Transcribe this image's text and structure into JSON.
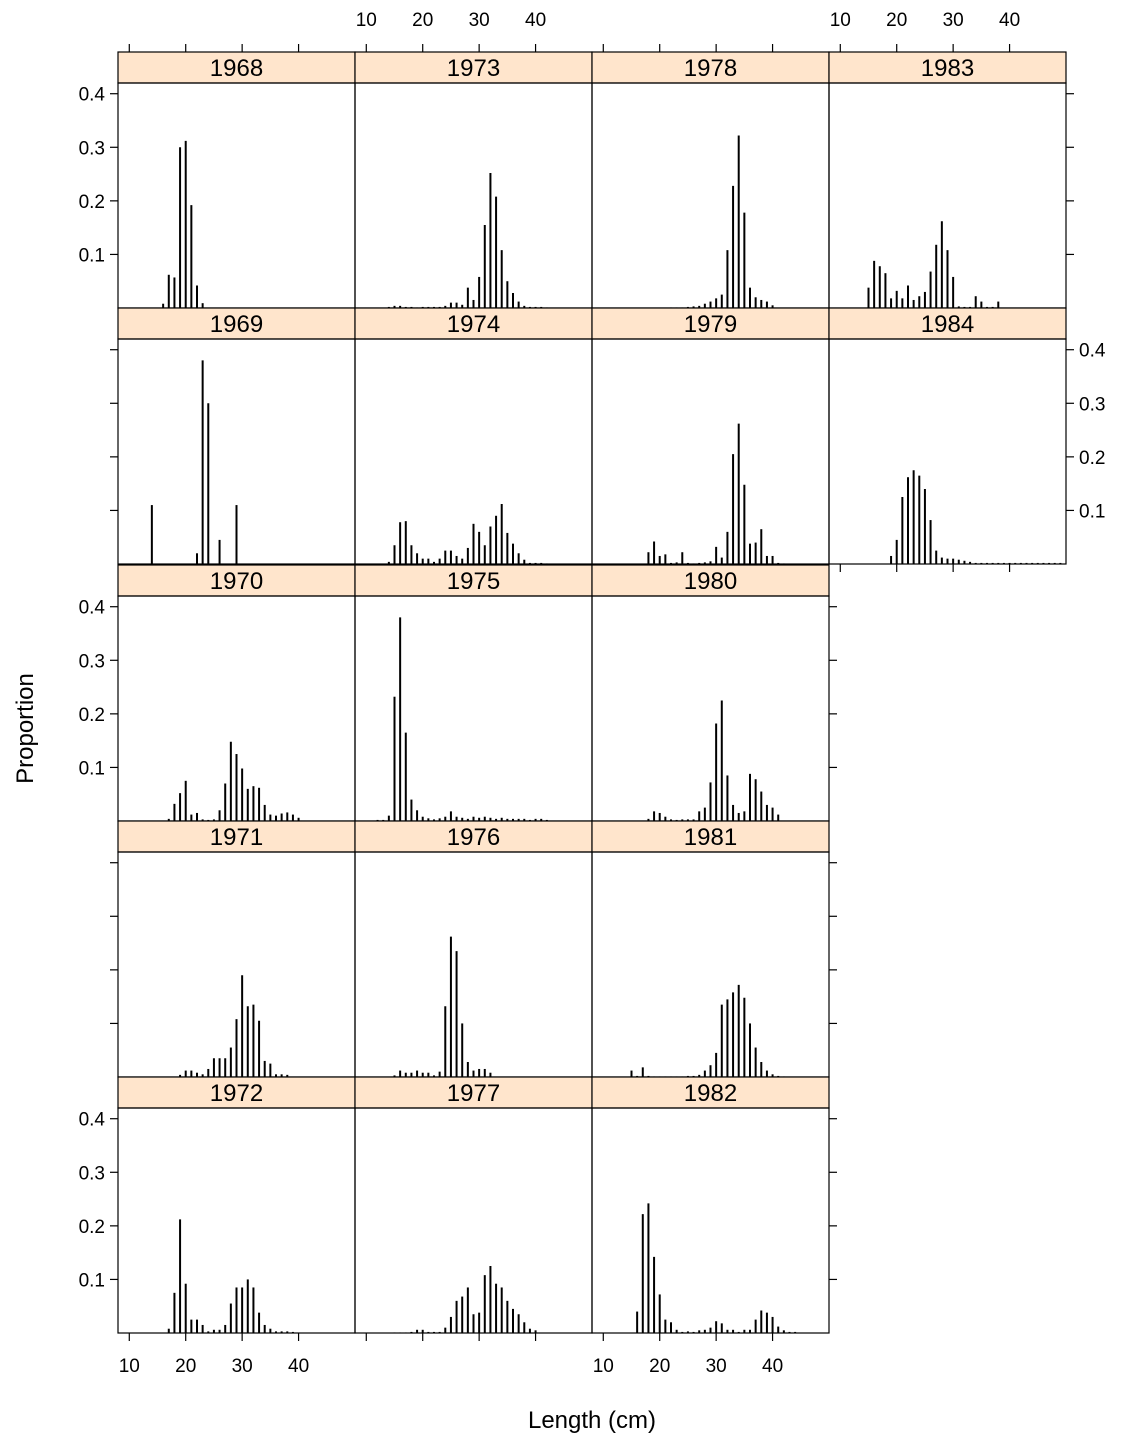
{
  "chart_data": {
    "type": "bar",
    "xlabel": "Length (cm)",
    "ylabel": "Proportion",
    "xlim": [
      8,
      50
    ],
    "ylim": [
      0,
      0.42
    ],
    "xticks": [
      10,
      20,
      30,
      40
    ],
    "yticks": [
      0.1,
      0.2,
      0.3,
      0.4
    ],
    "x_tick_labels": [
      "10",
      "20",
      "30",
      "40"
    ],
    "y_tick_labels": [
      "0.1",
      "0.2",
      "0.3",
      "0.4"
    ],
    "grid": false,
    "layout": {
      "columns": 4,
      "rows": 5,
      "order": "column-major"
    },
    "strip_color": "#ffe5cc",
    "bar_color": "#000000",
    "panels": [
      {
        "label": "1968",
        "lengths": [
          16,
          17,
          18,
          19,
          20,
          21,
          22,
          23
        ],
        "values": [
          0.008,
          0.062,
          0.057,
          0.3,
          0.312,
          0.192,
          0.042,
          0.009
        ]
      },
      {
        "label": "1969",
        "lengths": [
          14,
          22,
          23,
          24,
          26,
          29
        ],
        "values": [
          0.11,
          0.02,
          0.38,
          0.3,
          0.045,
          0.11
        ]
      },
      {
        "label": "1970",
        "lengths": [
          17,
          18,
          19,
          20,
          21,
          22,
          23,
          24,
          25,
          26,
          27,
          28,
          29,
          30,
          31,
          32,
          33,
          34,
          35,
          36,
          37,
          38,
          39,
          40
        ],
        "values": [
          0.004,
          0.032,
          0.052,
          0.075,
          0.012,
          0.015,
          0.003,
          0.002,
          0.003,
          0.02,
          0.07,
          0.148,
          0.125,
          0.098,
          0.06,
          0.065,
          0.062,
          0.03,
          0.012,
          0.01,
          0.014,
          0.016,
          0.012,
          0.006
        ]
      },
      {
        "label": "1971",
        "lengths": [
          19,
          20,
          21,
          22,
          23,
          24,
          25,
          26,
          27,
          28,
          29,
          30,
          31,
          32,
          33,
          34,
          35,
          36,
          37,
          38
        ],
        "values": [
          0.004,
          0.012,
          0.012,
          0.008,
          0.005,
          0.015,
          0.035,
          0.035,
          0.035,
          0.055,
          0.108,
          0.19,
          0.132,
          0.135,
          0.105,
          0.03,
          0.025,
          0.005,
          0.005,
          0.004
        ]
      },
      {
        "label": "1972",
        "lengths": [
          17,
          18,
          19,
          20,
          21,
          22,
          23,
          24,
          25,
          26,
          27,
          28,
          29,
          30,
          31,
          32,
          33,
          34,
          35,
          36,
          37,
          38,
          39
        ],
        "values": [
          0.008,
          0.075,
          0.212,
          0.092,
          0.025,
          0.025,
          0.015,
          0.003,
          0.006,
          0.006,
          0.015,
          0.055,
          0.085,
          0.085,
          0.1,
          0.085,
          0.038,
          0.015,
          0.008,
          0.003,
          0.003,
          0.003,
          0.002
        ]
      },
      {
        "label": "1973",
        "lengths": [
          14,
          15,
          16,
          17,
          18,
          19,
          20,
          21,
          22,
          23,
          24,
          25,
          26,
          27,
          28,
          29,
          30,
          31,
          32,
          33,
          34,
          35,
          36,
          37,
          38,
          39,
          40,
          41,
          42
        ],
        "values": [
          0.002,
          0.004,
          0.004,
          0.002,
          0.002,
          0.001,
          0.002,
          0.002,
          0.002,
          0.002,
          0.004,
          0.01,
          0.01,
          0.006,
          0.038,
          0.015,
          0.058,
          0.155,
          0.252,
          0.208,
          0.108,
          0.05,
          0.028,
          0.012,
          0.004,
          0.002,
          0.002,
          0.002,
          0.001
        ]
      },
      {
        "label": "1974",
        "lengths": [
          14,
          15,
          16,
          17,
          18,
          19,
          20,
          21,
          22,
          23,
          24,
          25,
          26,
          27,
          28,
          29,
          30,
          31,
          32,
          33,
          34,
          35,
          36,
          37,
          38,
          39,
          40,
          41,
          42
        ],
        "values": [
          0.004,
          0.035,
          0.078,
          0.08,
          0.035,
          0.02,
          0.01,
          0.01,
          0.004,
          0.01,
          0.025,
          0.025,
          0.015,
          0.01,
          0.03,
          0.075,
          0.06,
          0.035,
          0.07,
          0.09,
          0.112,
          0.058,
          0.038,
          0.02,
          0.008,
          0.002,
          0.002,
          0.002,
          0.001
        ]
      },
      {
        "label": "1975",
        "lengths": [
          12,
          13,
          14,
          15,
          16,
          17,
          18,
          19,
          20,
          21,
          22,
          23,
          24,
          25,
          26,
          27,
          28,
          29,
          30,
          31,
          32,
          33,
          34,
          35,
          36,
          37,
          38,
          39,
          40,
          41,
          42
        ],
        "values": [
          0.002,
          0.002,
          0.01,
          0.232,
          0.38,
          0.165,
          0.04,
          0.02,
          0.008,
          0.005,
          0.003,
          0.005,
          0.008,
          0.018,
          0.008,
          0.006,
          0.004,
          0.008,
          0.006,
          0.008,
          0.006,
          0.004,
          0.006,
          0.004,
          0.004,
          0.004,
          0.004,
          0.002,
          0.004,
          0.004,
          0.002
        ]
      },
      {
        "label": "1976",
        "lengths": [
          15,
          16,
          17,
          18,
          19,
          20,
          21,
          22,
          23,
          24,
          25,
          26,
          27,
          28,
          29,
          30,
          31,
          32
        ],
        "values": [
          0.003,
          0.012,
          0.008,
          0.008,
          0.012,
          0.008,
          0.008,
          0.003,
          0.01,
          0.132,
          0.262,
          0.235,
          0.1,
          0.028,
          0.012,
          0.015,
          0.015,
          0.008
        ]
      },
      {
        "label": "1977",
        "lengths": [
          15,
          16,
          17,
          18,
          19,
          20,
          21,
          22,
          23,
          24,
          25,
          26,
          27,
          28,
          29,
          30,
          31,
          32,
          33,
          34,
          35,
          36,
          37,
          38,
          39,
          40
        ],
        "values": [
          0.001,
          0.001,
          0.001,
          0.002,
          0.006,
          0.006,
          0.002,
          0.002,
          0.002,
          0.01,
          0.03,
          0.06,
          0.068,
          0.085,
          0.035,
          0.038,
          0.108,
          0.125,
          0.092,
          0.085,
          0.06,
          0.045,
          0.035,
          0.02,
          0.008,
          0.005
        ]
      },
      {
        "label": "1978",
        "lengths": [
          22,
          23,
          24,
          25,
          26,
          27,
          28,
          29,
          30,
          31,
          32,
          33,
          34,
          35,
          36,
          37,
          38,
          39,
          40
        ],
        "values": [
          0.001,
          0.001,
          0.001,
          0.002,
          0.003,
          0.004,
          0.008,
          0.012,
          0.018,
          0.025,
          0.108,
          0.228,
          0.322,
          0.178,
          0.038,
          0.02,
          0.015,
          0.012,
          0.005
        ]
      },
      {
        "label": "1979",
        "lengths": [
          18,
          19,
          20,
          21,
          22,
          23,
          24,
          25,
          26,
          27,
          28,
          29,
          30,
          31,
          32,
          33,
          34,
          35,
          36,
          37,
          38,
          39,
          40,
          41,
          42
        ],
        "values": [
          0.022,
          0.042,
          0.015,
          0.018,
          0.002,
          0.003,
          0.022,
          0.002,
          0.001,
          0.002,
          0.003,
          0.005,
          0.032,
          0.012,
          0.06,
          0.205,
          0.262,
          0.148,
          0.038,
          0.04,
          0.065,
          0.015,
          0.015,
          0.002,
          0.001
        ]
      },
      {
        "label": "1980",
        "lengths": [
          18,
          19,
          20,
          21,
          22,
          23,
          24,
          25,
          26,
          27,
          28,
          29,
          30,
          31,
          32,
          33,
          34,
          35,
          36,
          37,
          38,
          39,
          40,
          41
        ],
        "values": [
          0.004,
          0.018,
          0.015,
          0.008,
          0.003,
          0.002,
          0.003,
          0.003,
          0.003,
          0.018,
          0.025,
          0.072,
          0.182,
          0.225,
          0.085,
          0.03,
          0.015,
          0.018,
          0.088,
          0.078,
          0.055,
          0.03,
          0.025,
          0.012
        ]
      },
      {
        "label": "1981",
        "lengths": [
          15,
          16,
          17,
          18,
          19,
          20,
          21,
          22,
          23,
          24,
          25,
          26,
          27,
          28,
          29,
          30,
          31,
          32,
          33,
          34,
          35,
          36,
          37,
          38,
          39,
          40,
          41,
          42
        ],
        "values": [
          0.012,
          0.002,
          0.018,
          0.002,
          0.001,
          0.001,
          0.001,
          0.001,
          0.001,
          0.001,
          0.002,
          0.002,
          0.004,
          0.012,
          0.022,
          0.045,
          0.135,
          0.145,
          0.158,
          0.172,
          0.148,
          0.1,
          0.055,
          0.028,
          0.012,
          0.005,
          0.002,
          0.001
        ]
      },
      {
        "label": "1982",
        "lengths": [
          16,
          17,
          18,
          19,
          20,
          21,
          22,
          23,
          24,
          25,
          26,
          27,
          28,
          29,
          30,
          31,
          32,
          33,
          34,
          35,
          36,
          37,
          38,
          39,
          40,
          41,
          42,
          43,
          44
        ],
        "values": [
          0.04,
          0.222,
          0.242,
          0.142,
          0.072,
          0.025,
          0.02,
          0.006,
          0.002,
          0.003,
          0.002,
          0.005,
          0.006,
          0.01,
          0.022,
          0.018,
          0.006,
          0.006,
          0.002,
          0.006,
          0.006,
          0.025,
          0.042,
          0.038,
          0.03,
          0.012,
          0.005,
          0.002,
          0.002
        ]
      },
      {
        "label": "1983",
        "lengths": [
          15,
          16,
          17,
          18,
          19,
          20,
          21,
          22,
          23,
          24,
          25,
          26,
          27,
          28,
          29,
          30,
          31,
          32,
          33,
          34,
          35,
          36,
          37,
          38
        ],
        "values": [
          0.038,
          0.088,
          0.078,
          0.065,
          0.018,
          0.032,
          0.018,
          0.042,
          0.015,
          0.022,
          0.03,
          0.068,
          0.118,
          0.162,
          0.108,
          0.058,
          0.003,
          0.002,
          0.002,
          0.022,
          0.012,
          0.002,
          0.002,
          0.012
        ]
      },
      {
        "label": "1984",
        "lengths": [
          19,
          20,
          21,
          22,
          23,
          24,
          25,
          26,
          27,
          28,
          29,
          30,
          31,
          32,
          33,
          34,
          35,
          36,
          37,
          38,
          39,
          40,
          41,
          42,
          43,
          44,
          45,
          46,
          47,
          48,
          49
        ],
        "values": [
          0.015,
          0.045,
          0.125,
          0.162,
          0.175,
          0.165,
          0.14,
          0.082,
          0.025,
          0.012,
          0.01,
          0.01,
          0.008,
          0.006,
          0.004,
          0.002,
          0.002,
          0.002,
          0.002,
          0.002,
          0.002,
          0.002,
          0.002,
          0.002,
          0.002,
          0.002,
          0.002,
          0.002,
          0.002,
          0.002,
          0.002
        ]
      }
    ]
  }
}
